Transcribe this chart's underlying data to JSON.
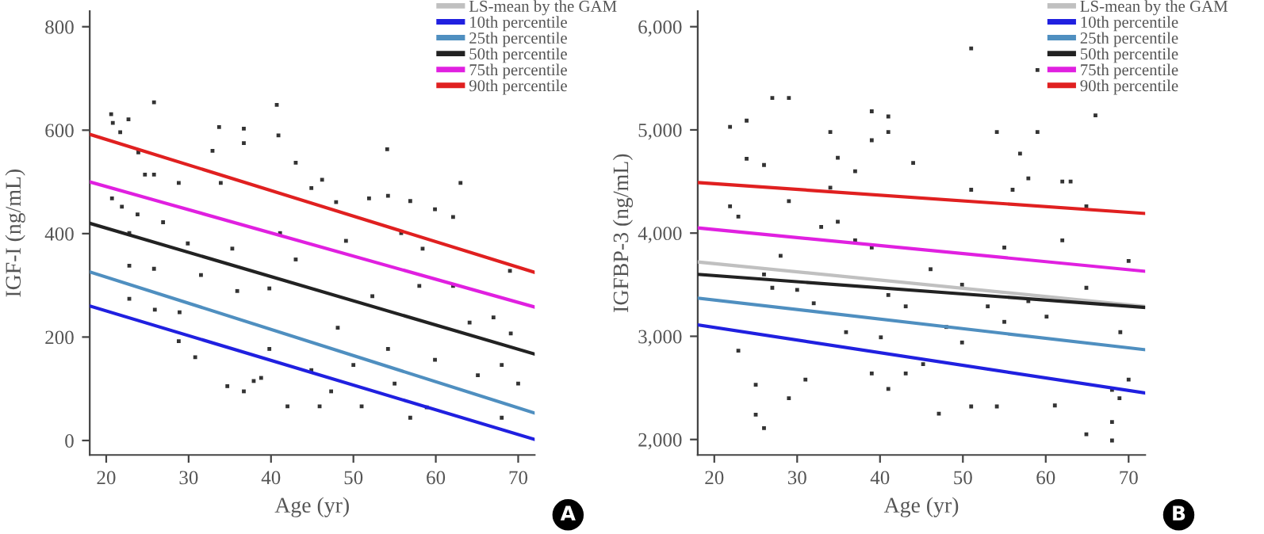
{
  "chart_data": [
    {
      "type": "line",
      "xlabel": "Age (yr)",
      "ylabel": "IGF-I (ng/mL)",
      "xlim": [
        18,
        72
      ],
      "ylim": [
        -28,
        830
      ],
      "xticks": [
        20,
        30,
        40,
        50,
        60,
        70
      ],
      "yticks": [
        0,
        200,
        400,
        600,
        800
      ],
      "legend": "top right",
      "grid": false,
      "annotations": [
        "A"
      ],
      "series": [
        {
          "type": "scatter",
          "color": "#333333",
          "marker": "square",
          "x": [
            20.6,
            20.8,
            21.7,
            22.7,
            23.9,
            25.8,
            24.7,
            20.7,
            21.9,
            22.8,
            23.8,
            22.8,
            22.8,
            25.8,
            25.8,
            25.9,
            26.9,
            28.8,
            28.9,
            28.8,
            30.8,
            29.9,
            31.5,
            32.9,
            33.7,
            33.9,
            34.7,
            35.3,
            36.7,
            36.7,
            36.7,
            35.9,
            37.9,
            38.8,
            40.7,
            40.9,
            41.1,
            39.8,
            39.8,
            42.0,
            43.0,
            43.0,
            44.9,
            44.9,
            45.9,
            47.3,
            47.9,
            48.1,
            50.0,
            51.0,
            51.9,
            52.3,
            54.1,
            54.2,
            54.2,
            55.0,
            56.9,
            56.9,
            58.0,
            59.9,
            59.9,
            58.9,
            62.1,
            63.0,
            62.1,
            64.1,
            65.1,
            67.0,
            68.0,
            68.0,
            69.1,
            70.0,
            69.0,
            46.2,
            49.1,
            55.8,
            58.4
          ],
          "values": [
            631,
            614,
            596,
            621,
            557,
            654,
            514,
            468,
            452,
            401,
            437,
            338,
            274,
            514,
            332,
            253,
            422,
            498,
            248,
            192,
            161,
            381,
            320,
            560,
            606,
            498,
            105,
            371,
            603,
            575,
            95,
            289,
            115,
            121,
            649,
            590,
            401,
            294,
            177,
            66,
            537,
            350,
            488,
            136,
            66,
            95,
            461,
            218,
            146,
            66,
            468,
            279,
            563,
            473,
            177,
            110,
            463,
            44,
            299,
            447,
            156,
            64,
            432,
            498,
            299,
            228,
            126,
            238,
            146,
            44,
            207,
            110,
            328,
            504,
            386,
            401,
            371
          ]
        },
        {
          "name": "LS-mean by the GAM",
          "color": "#c0c0c0",
          "values": [
            null,
            null
          ]
        },
        {
          "name": "10th percentile",
          "color": "#2020e0",
          "x": [
            18,
            72
          ],
          "values": [
            260,
            2
          ]
        },
        {
          "name": "25th percentile",
          "color": "#4f8fc0",
          "x": [
            18,
            72
          ],
          "values": [
            326,
            53
          ]
        },
        {
          "name": "50th percentile",
          "color": "#222222",
          "x": [
            18,
            72
          ],
          "values": [
            420,
            167
          ]
        },
        {
          "name": "75th percentile",
          "color": "#e020e0",
          "x": [
            18,
            72
          ],
          "values": [
            500,
            258
          ]
        },
        {
          "name": "90th percentile",
          "color": "#e02020",
          "x": [
            18,
            72
          ],
          "values": [
            592,
            325
          ]
        }
      ]
    },
    {
      "type": "line",
      "xlabel": "Age (yr)",
      "ylabel": "IGFBP-3 (ng/mL)",
      "xlim": [
        18,
        72
      ],
      "ylim": [
        1850,
        6150
      ],
      "xticks": [
        20,
        30,
        40,
        50,
        60,
        70
      ],
      "yticks": [
        {
          "value": 2000,
          "label": "2,000"
        },
        {
          "value": 3000,
          "label": "3,000"
        },
        {
          "value": 4000,
          "label": "4,000"
        },
        {
          "value": 5000,
          "label": "5,000"
        },
        {
          "value": 6000,
          "label": "6,000"
        }
      ],
      "legend": "top right",
      "grid": false,
      "annotations": [
        "B"
      ],
      "x": [
        18,
        72
      ],
      "series": [
        {
          "type": "scatter",
          "color": "#333333",
          "marker": "square",
          "x": [
            21.9,
            23.9,
            23.9,
            26.0,
            27.0,
            29.0,
            25.0,
            26.0,
            25.0,
            29.0,
            21.9,
            22.9,
            22.9,
            27.0,
            29.0,
            31.0,
            34.0,
            34.0,
            34.9,
            37.0,
            39.0,
            39.0,
            41.0,
            41.0,
            41.0,
            44.0,
            39.0,
            43.1,
            45.2,
            47.1,
            51.0,
            51.0,
            51.0,
            54.1,
            54.1,
            56.0,
            56.9,
            57.9,
            59.0,
            59.0,
            61.1,
            62.0,
            63.0,
            66.0,
            64.9,
            68.0,
            68.0,
            68.0,
            68.9,
            70.0,
            70.0,
            69.0,
            64.9,
            64.9,
            62.0,
            60.1,
            57.9,
            55.0,
            53.0,
            49.9,
            48.0,
            46.1,
            43.1,
            41.0,
            39.0,
            37.0,
            34.9,
            32.9,
            32.0,
            30.0,
            28.0,
            26.0,
            40.1,
            35.9,
            49.9,
            55.0
          ],
          "values": [
            5030,
            5090,
            4720,
            4660,
            5310,
            5310,
            2240,
            2110,
            2530,
            2400,
            4260,
            4160,
            2860,
            3470,
            4310,
            2580,
            4980,
            4440,
            4730,
            4600,
            5180,
            4900,
            5130,
            4980,
            2490,
            4680,
            2640,
            2640,
            2730,
            2250,
            5790,
            4420,
            2320,
            4980,
            2320,
            4420,
            4770,
            4530,
            5580,
            4980,
            2330,
            4500,
            4500,
            5140,
            2050,
            2480,
            1990,
            2170,
            2400,
            2580,
            3730,
            3040,
            3470,
            4260,
            3930,
            3190,
            3340,
            3860,
            3290,
            3500,
            3090,
            3650,
            3290,
            3400,
            3860,
            3930,
            4110,
            4060,
            3320,
            3450,
            3780,
            3600,
            2990,
            3040,
            2940,
            3140
          ]
        },
        {
          "name": "LS-mean by the GAM",
          "color": "#c0c0c0",
          "values": [
            3720,
            3290
          ]
        },
        {
          "name": "10th percentile",
          "color": "#2020e0",
          "values": [
            3110,
            2450
          ]
        },
        {
          "name": "25th percentile",
          "color": "#4f8fc0",
          "values": [
            3370,
            2870
          ]
        },
        {
          "name": "50th percentile",
          "color": "#222222",
          "values": [
            3600,
            3280
          ]
        },
        {
          "name": "75th percentile",
          "color": "#e020e0",
          "values": [
            4050,
            3630
          ]
        },
        {
          "name": "90th percentile",
          "color": "#e02020",
          "values": [
            4490,
            4190
          ]
        }
      ]
    }
  ]
}
